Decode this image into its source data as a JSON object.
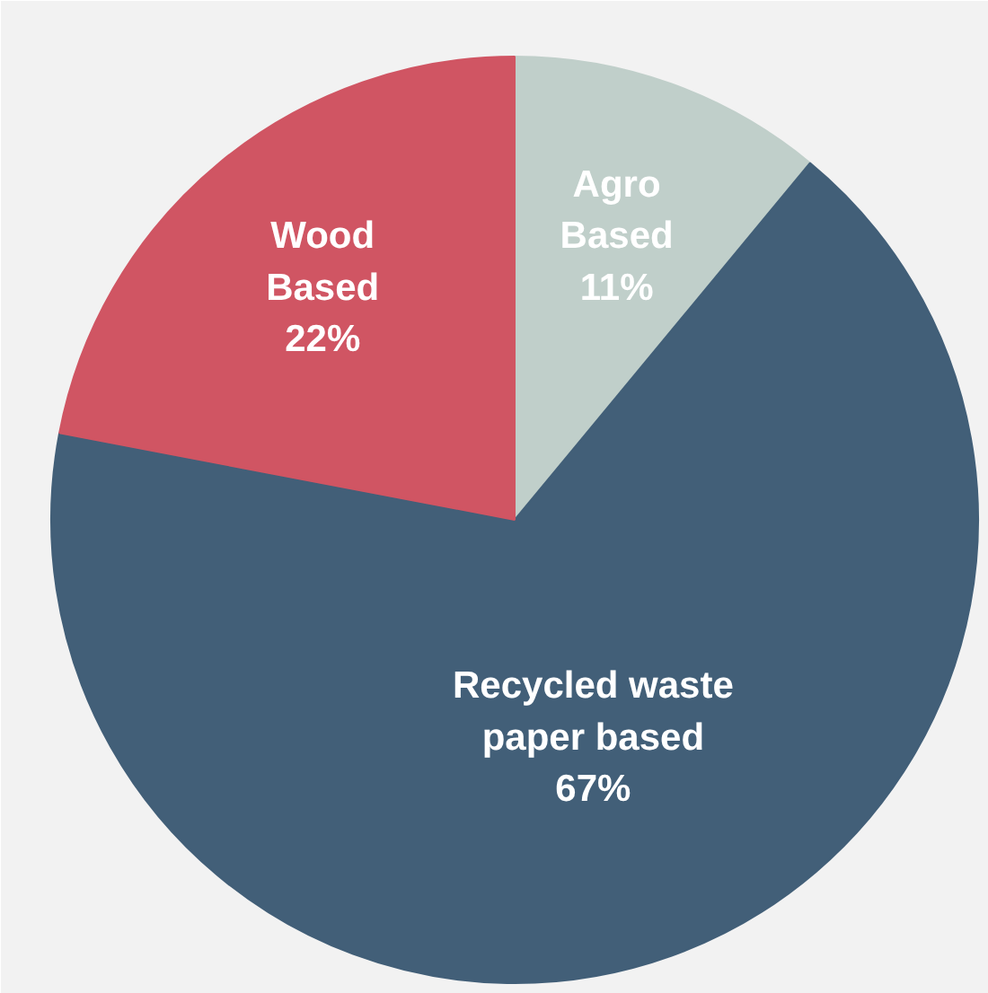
{
  "chart_data": {
    "type": "pie",
    "categories": [
      "Agro Based",
      "Recycled waste paper based",
      "Wood Based"
    ],
    "values": [
      11,
      67,
      22
    ],
    "colors": [
      "#c0cfca",
      "#425f78",
      "#d05563"
    ],
    "value_labels": [
      "11%",
      "67%",
      "22%"
    ]
  }
}
